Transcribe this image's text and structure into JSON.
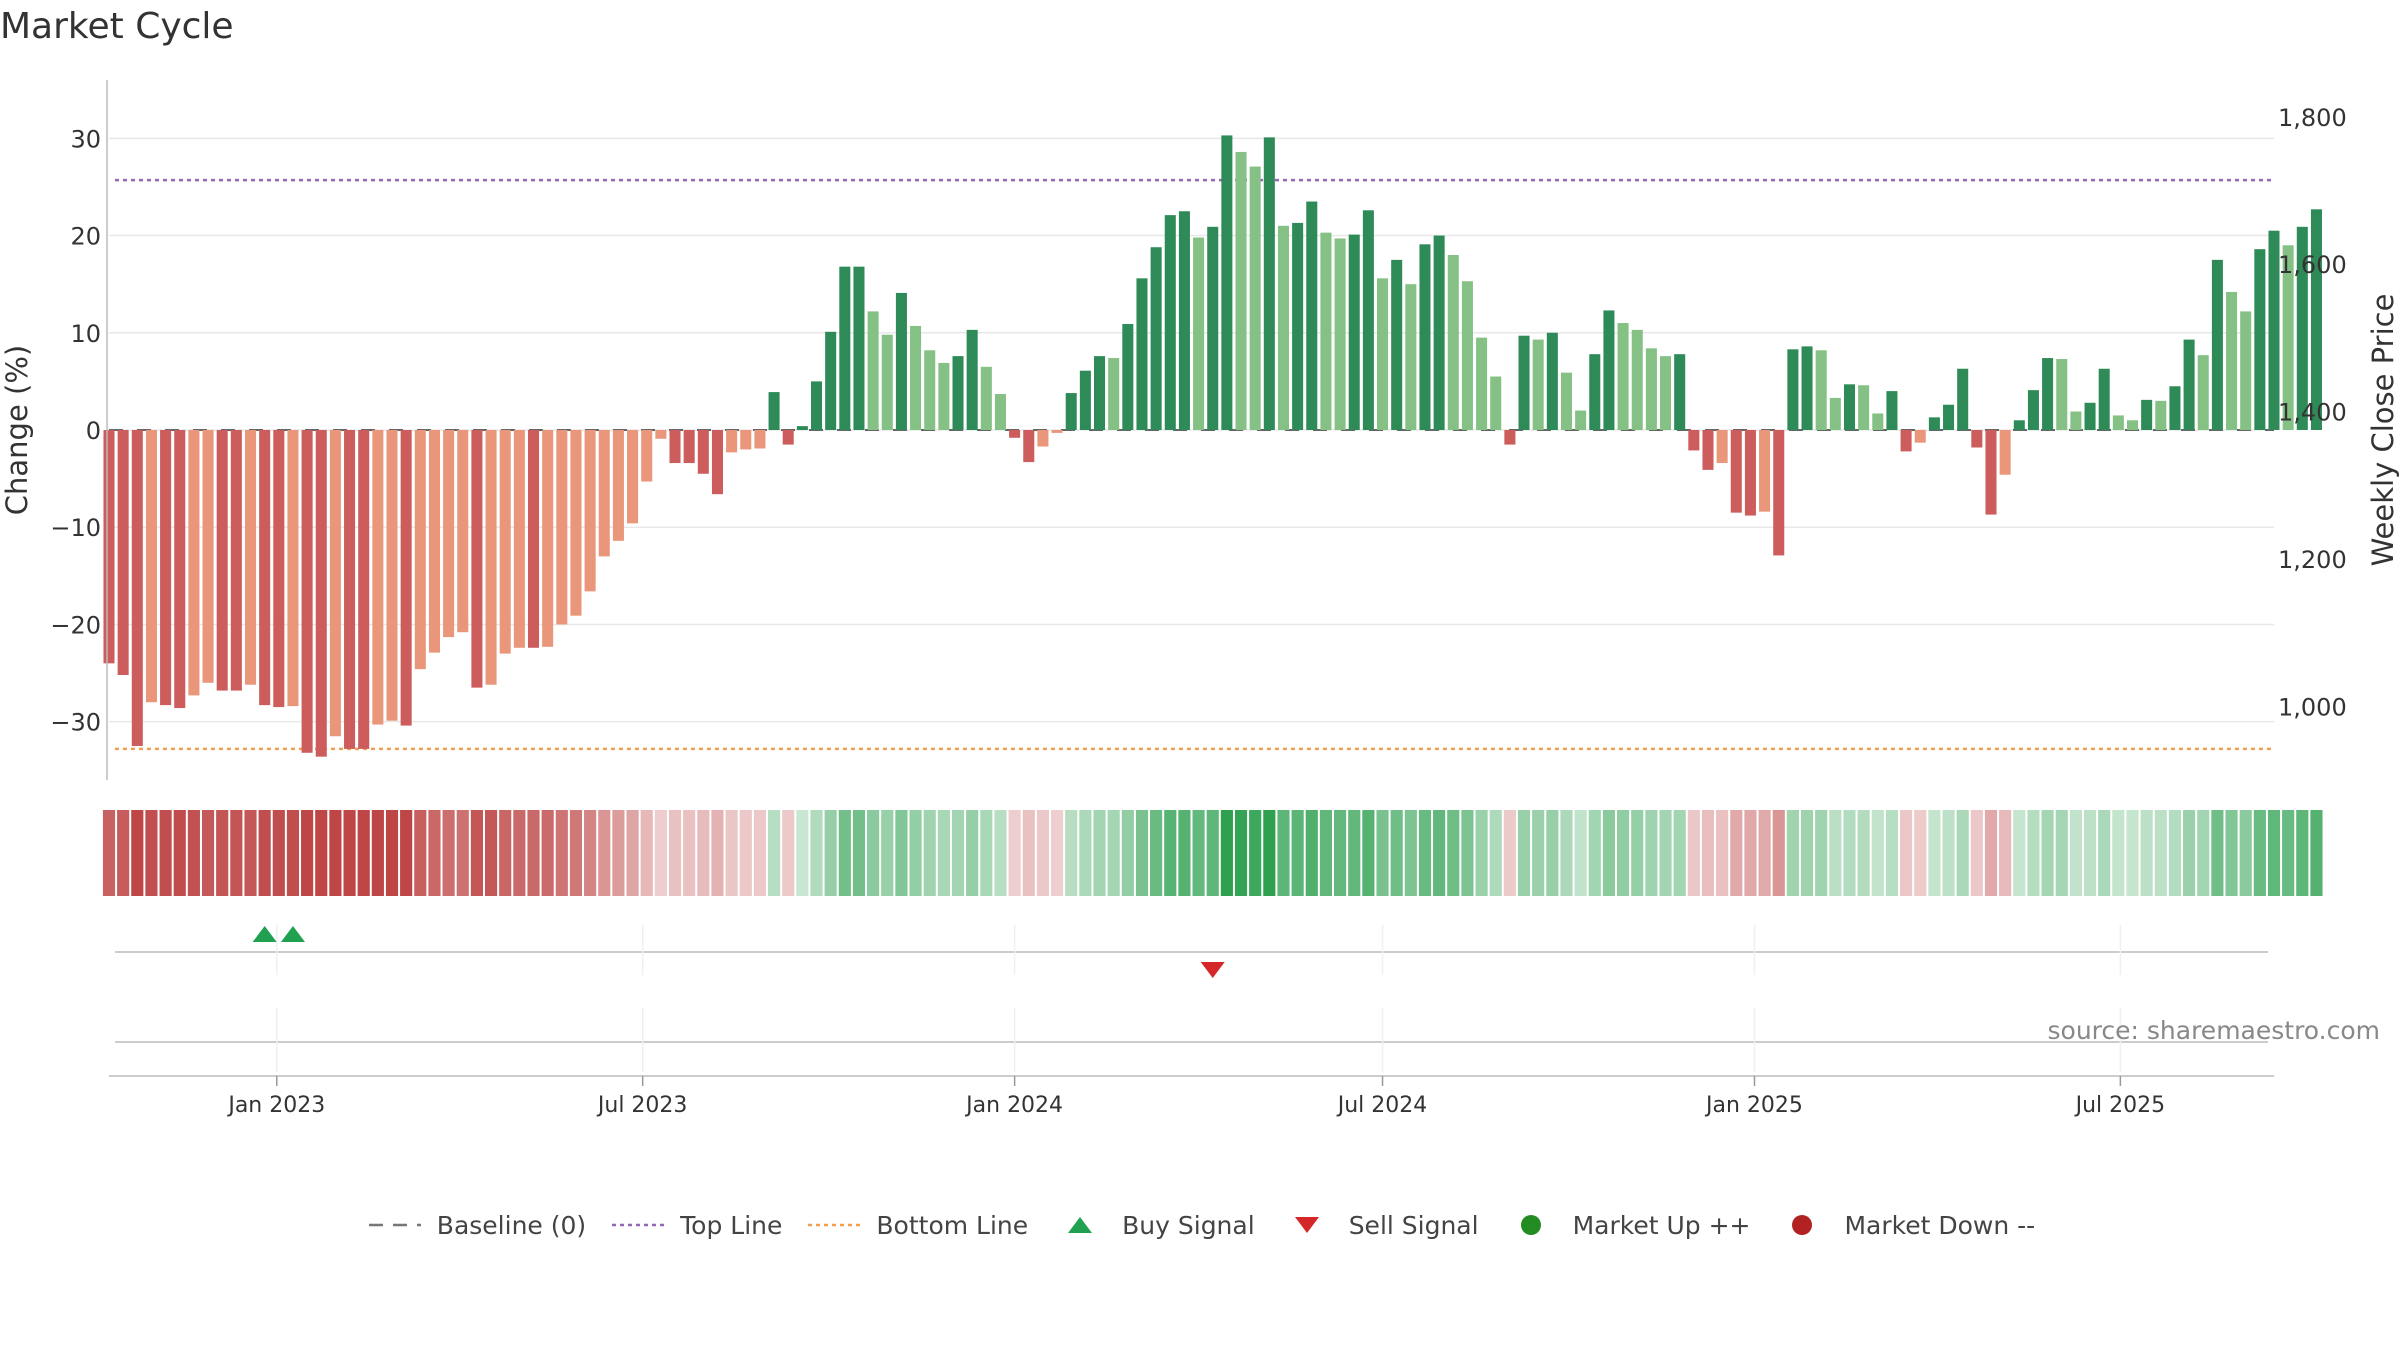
{
  "title": "Market Cycle",
  "source": "source: sharemaestro.com",
  "legend": [
    {
      "label": "Baseline (0)",
      "symbol": "dash",
      "color": "#777777"
    },
    {
      "label": "Top Line",
      "symbol": "dot",
      "color": "#9467bd"
    },
    {
      "label": "Bottom Line",
      "symbol": "dot",
      "color": "#f0a050"
    },
    {
      "label": "Buy Signal",
      "symbol": "triangle-up",
      "color": "#20a050"
    },
    {
      "label": "Sell Signal",
      "symbol": "triangle-down",
      "color": "#d62728"
    },
    {
      "label": "Market Up ++",
      "symbol": "circle",
      "color": "#228b22"
    },
    {
      "label": "Market Down --",
      "symbol": "circle",
      "color": "#b22222"
    }
  ],
  "chart_data": {
    "type": "bar",
    "ylabel": "Change (%)",
    "y2label": "Weekly Close Price",
    "ylim": [
      -36,
      36
    ],
    "y2lim": [
      900,
      1850
    ],
    "yticks": [
      30,
      20,
      10,
      0,
      -10,
      -20,
      -30
    ],
    "ytick_labels": [
      "30",
      "20",
      "10",
      "0",
      "−10",
      "−20",
      "−30"
    ],
    "y2ticks": [
      1800,
      1600,
      1400,
      1200,
      1000
    ],
    "y2tick_labels": [
      "1,800",
      "1,600",
      "1,400",
      "1,200",
      "1,000"
    ],
    "xlim": [
      "2022-10-10",
      "2025-09-15"
    ],
    "xticks": [
      "2023-01-01",
      "2023-07-01",
      "2024-01-01",
      "2024-07-01",
      "2025-01-01",
      "2025-07-01"
    ],
    "xtick_labels": [
      "Jan 2023",
      "Jul 2023",
      "Jan 2024",
      "Jul 2024",
      "Jan 2025",
      "Jul 2025"
    ],
    "top_line": 25.7,
    "bottom_line": -32.8,
    "baseline": 0,
    "start_date": "2022-10-10",
    "interval_days": 7,
    "values": [
      -24,
      -25.2,
      -32.5,
      -28,
      -28.3,
      -28.6,
      -27.3,
      -26,
      -26.8,
      -26.8,
      -26.2,
      -28.3,
      -28.5,
      -28.4,
      -33.2,
      -33.6,
      -31.5,
      -32.8,
      -32.8,
      -30.3,
      -29.9,
      -30.4,
      -24.6,
      -22.9,
      -21.3,
      -20.8,
      -26.5,
      -26.2,
      -23,
      -22.4,
      -22.4,
      -22.3,
      -20,
      -19.1,
      -16.6,
      -13,
      -11.4,
      -9.6,
      -5.3,
      -0.9,
      -3.4,
      -3.4,
      -4.5,
      -6.6,
      -2.3,
      -2,
      -1.9,
      3.9,
      -1.5,
      0.4,
      5,
      10.1,
      16.8,
      16.8,
      12.2,
      9.8,
      14.1,
      10.7,
      8.2,
      6.9,
      7.6,
      10.3,
      6.5,
      3.7,
      -0.8,
      -3.3,
      -1.7,
      -0.3,
      3.8,
      6.1,
      7.6,
      7.4,
      10.9,
      15.6,
      18.8,
      22.1,
      22.5,
      19.8,
      20.9,
      30.3,
      28.6,
      27.1,
      30.1,
      21,
      21.3,
      23.5,
      20.3,
      19.7,
      20.1,
      22.6,
      15.6,
      17.5,
      15,
      19.1,
      20,
      18,
      15.3,
      9.5,
      5.5,
      -1.5,
      9.7,
      9.3,
      10,
      5.9,
      2,
      7.8,
      12.3,
      11,
      10.3,
      8.4,
      7.6,
      7.8,
      -2.1,
      -4.1,
      -3.4,
      -8.5,
      -8.8,
      -8.4,
      -12.9,
      8.3,
      8.6,
      8.2,
      3.3,
      4.7,
      4.6,
      1.7,
      4,
      -2.2,
      -1.3,
      1.3,
      2.6,
      6.3,
      -1.8,
      -8.7,
      -4.6,
      1,
      4.1,
      7.4,
      7.3,
      1.9,
      2.8,
      6.3,
      1.5,
      1,
      3.1,
      3,
      4.5,
      9.3,
      7.7,
      17.5,
      14.2,
      12.2,
      18.6,
      20.5,
      19,
      20.9,
      22.7
    ],
    "buy_signals": [
      "2022-12-26",
      "2023-01-09"
    ],
    "sell_signals": [
      "2024-04-08"
    ],
    "colors": {
      "up_strong": "#2e8b57",
      "up_weak": "#85c185",
      "down_strong": "#cd5c5c",
      "down_weak": "#e9967a",
      "top_line": "#9467bd",
      "bottom_line": "#f0a050",
      "buy": "#20a050",
      "sell": "#d62728"
    }
  }
}
